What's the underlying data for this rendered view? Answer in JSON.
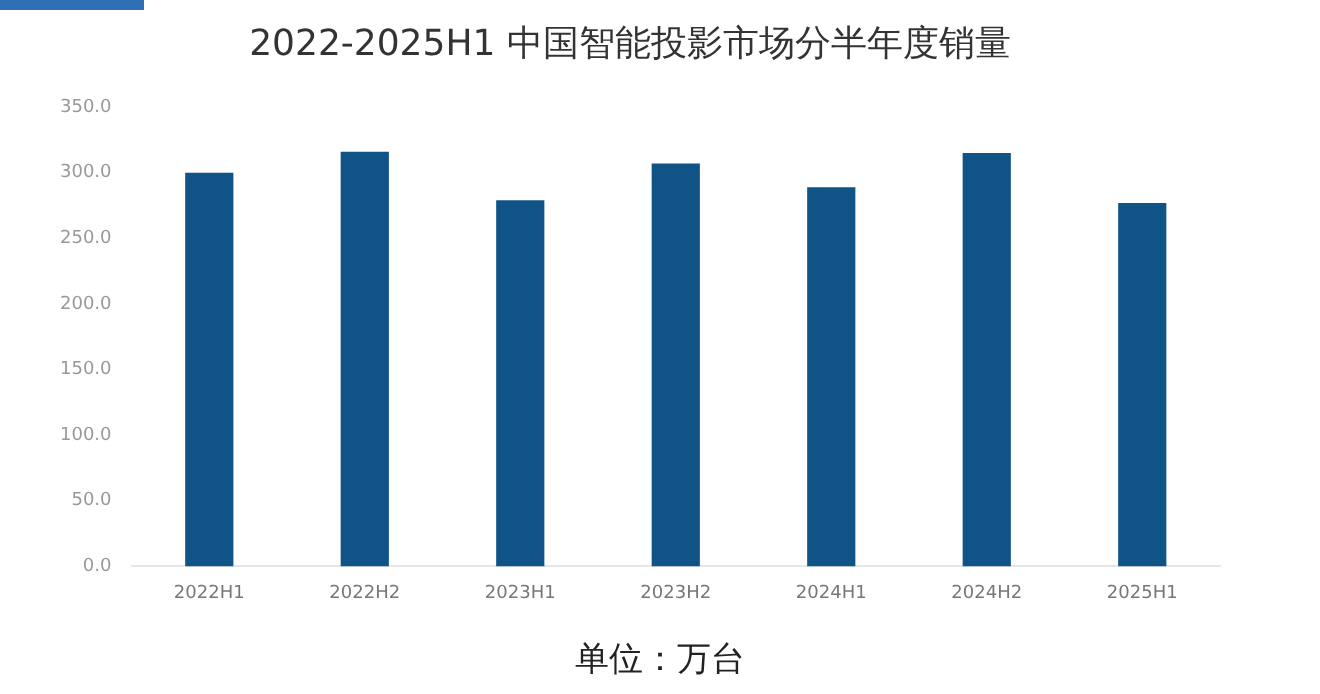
{
  "chart_data": {
    "type": "bar",
    "title": "2022-2025H1 中国智能投影市场分半年度销量",
    "categories": [
      "2022H1",
      "2022H2",
      "2023H1",
      "2023H2",
      "2024H1",
      "2024H2",
      "2025H1"
    ],
    "values": [
      300,
      316,
      279,
      307,
      289,
      315,
      277
    ],
    "color": "#0f5387",
    "ylim": [
      0,
      350
    ],
    "yticks": [
      {
        "value": 0,
        "label": "0.0"
      },
      {
        "value": 50,
        "label": "50.0"
      },
      {
        "value": 100,
        "label": "100.0"
      },
      {
        "value": 150,
        "label": "150.0"
      },
      {
        "value": 200,
        "label": "200.0"
      },
      {
        "value": 250,
        "label": "250.0"
      },
      {
        "value": 300,
        "label": "300.0"
      },
      {
        "value": 350,
        "label": "350.0"
      }
    ],
    "grid": false,
    "legend": false,
    "annotations": [
      "单位：万台"
    ]
  }
}
